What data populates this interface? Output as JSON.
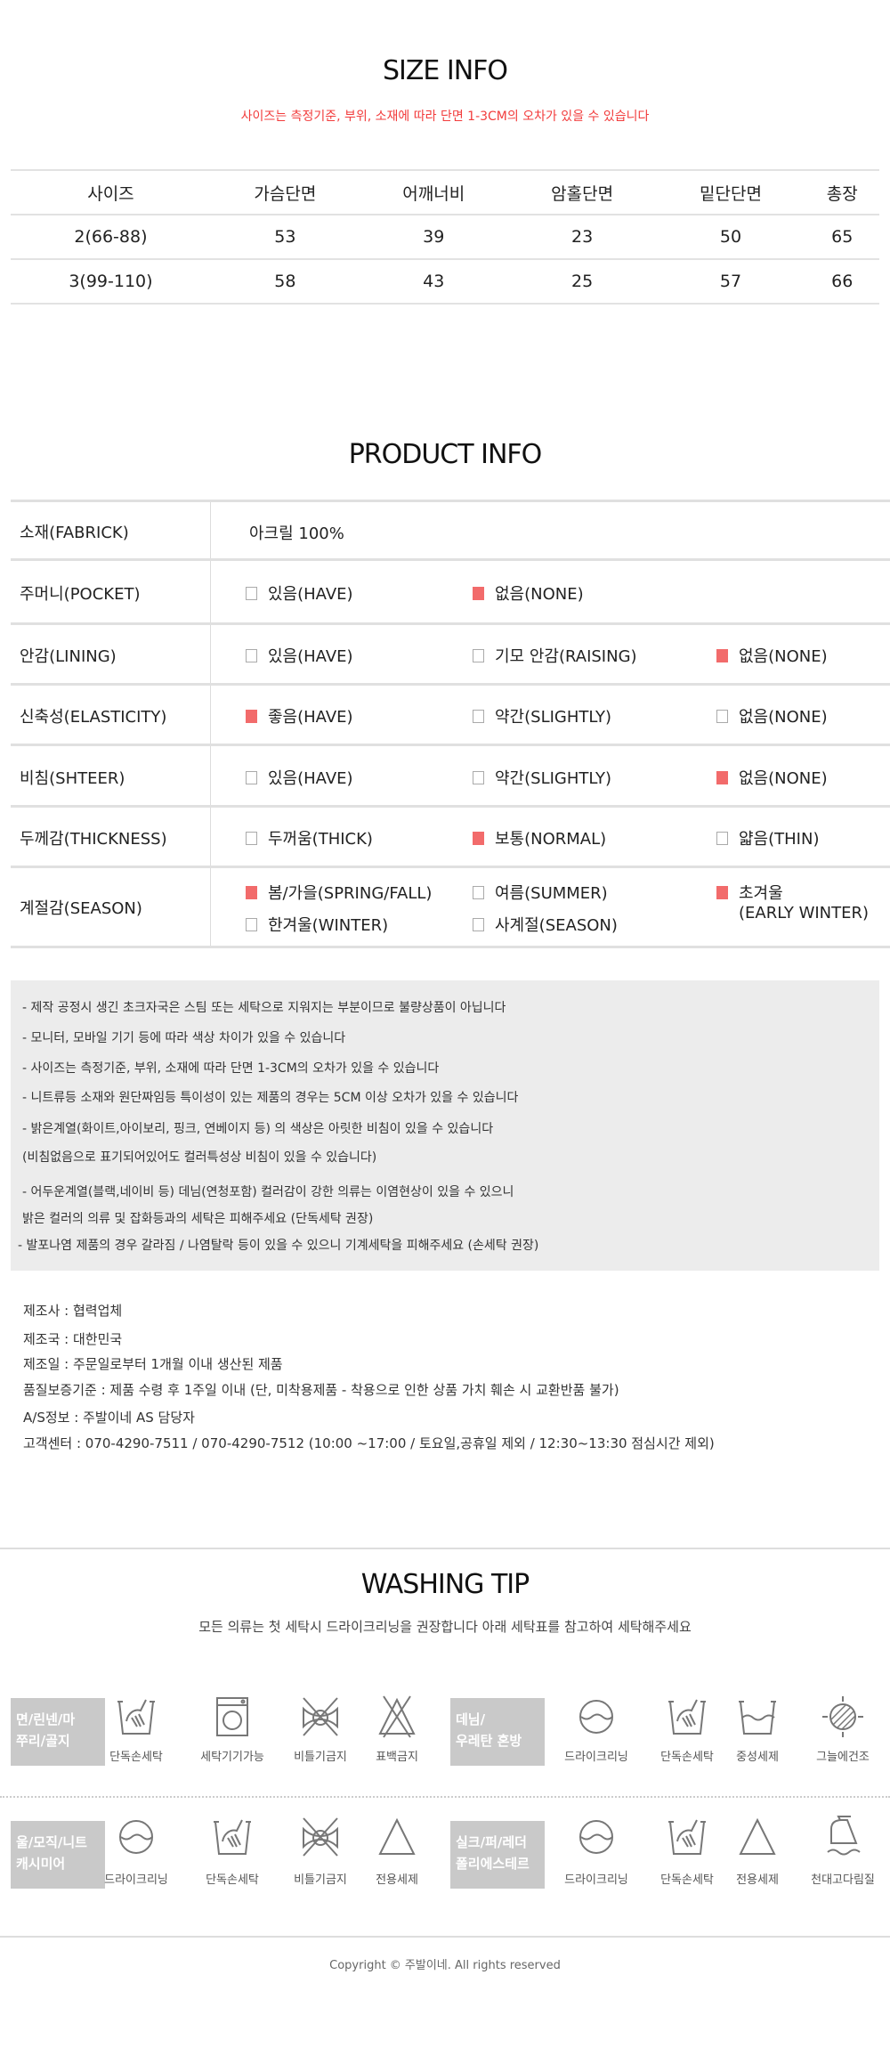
{
  "size_info": {
    "title": "SIZE INFO",
    "subtitle": "사이즈는 측정기준, 부위, 소재에 따라 단면 1-3CM의 오차가 있을 수 있습니다",
    "headers": [
      "사이즈",
      "가슴단면",
      "어깨너비",
      "암홀단면",
      "밑단단면",
      "총장"
    ],
    "rows": [
      [
        "2(66-88)",
        "53",
        "39",
        "23",
        "50",
        "65"
      ],
      [
        "3(99-110)",
        "58",
        "43",
        "25",
        "57",
        "66"
      ]
    ]
  },
  "product_info": {
    "title": "PRODUCT INFO",
    "fabric_label": "소재(FABRICK)",
    "fabric_value": "아크릴 100%",
    "rows": [
      {
        "label": "주머니(POCKET)",
        "options": [
          {
            "text": "있음(HAVE)",
            "checked": false
          },
          {
            "text": "없음(NONE)",
            "checked": true
          }
        ]
      },
      {
        "label": "안감(LINING)",
        "options": [
          {
            "text": "있음(HAVE)",
            "checked": false
          },
          {
            "text": "기모 안감(RAISING)",
            "checked": false
          },
          {
            "text": "없음(NONE)",
            "checked": true
          }
        ]
      },
      {
        "label": "신축성(ELASTICITY)",
        "options": [
          {
            "text": "좋음(HAVE)",
            "checked": true
          },
          {
            "text": "약간(SLIGHTLY)",
            "checked": false
          },
          {
            "text": "없음(NONE)",
            "checked": false
          }
        ]
      },
      {
        "label": "비침(SHTEER)",
        "options": [
          {
            "text": "있음(HAVE)",
            "checked": false
          },
          {
            "text": "약간(SLIGHTLY)",
            "checked": false
          },
          {
            "text": "없음(NONE)",
            "checked": true
          }
        ]
      },
      {
        "label": "두께감(THICKNESS)",
        "options": [
          {
            "text": "두꺼움(THICK)",
            "checked": false
          },
          {
            "text": "보통(NORMAL)",
            "checked": true
          },
          {
            "text": "얇음(THIN)",
            "checked": false
          }
        ]
      }
    ],
    "season": {
      "label": "계절감(SEASON)",
      "options": [
        {
          "text": "봄/가을(SPRING/FALL)",
          "checked": true
        },
        {
          "text": "여름(SUMMER)",
          "checked": false
        },
        {
          "text": "초겨울",
          "text2": "(EARLY WINTER)",
          "checked": true
        },
        {
          "text": "한겨울(WINTER)",
          "checked": false
        },
        {
          "text": "사계절(SEASON)",
          "checked": false
        }
      ]
    },
    "check_color": "#f26b6b"
  },
  "notices": [
    "- 제작 공정시 생긴 초크자국은 스팀 또는 세탁으로 지워지는 부분이므로 불량상품이 아닙니다",
    "- 모니터, 모바일 기기 등에 따라 색상 차이가 있을 수 있습니다",
    "- 사이즈는 측정기준, 부위, 소재에 따라 단면 1-3CM의 오차가 있을 수 있습니다",
    "- 니트류등 소재와 원단짜임등 특이성이 있는 제품의 경우는 5CM 이상 오차가 있을 수 있습니다",
    "- 밝은계열(화이트,아이보리, 핑크, 연베이지 등) 의 색상은 아릿한 비침이 있을 수 있습니다",
    "(비침없음으로 표기되어있어도 컬러특성상 비침이 있을 수 있습니다)",
    "- 어두운계열(블랙,네이비 등) 데님(연청포함) 컬러감이 강한 의류는 이염현상이 있을 수 있으니",
    "  밝은 컬러의 의류 및 잡화등과의 세탁은 피해주세요 (단독세탁 권장)",
    "- 발포나염 제품의 경우 갈라짐 / 나염탈락 등이 있을 수 있으니 기계세탁을 피해주세요 (손세탁 권장)"
  ],
  "maker_info": [
    "제조사 : 협력업체",
    "제조국 : 대한민국",
    "제조일 :  주문일로부터 1개월 이내 생산된 제품",
    "품질보증기준 : 제품 수령 후 1주일 이내 (단, 미착용제품 - 착용으로 인한 상품 가치 훼손 시 교환반품 불가)",
    "A/S정보 : 주발이네 AS 담당자"
  ],
  "customer_center": "고객센터 : 070-4290-7511 / 070-4290-7512 (10:00 ~17:00 / 토요일,공휴일 제외 / 12:30~13:30 점심시간 제외)",
  "washing": {
    "title": "WASHING TIP",
    "subtitle": "모든 의류는 첫 세탁시 드라이크리닝을 권장합니다 아래 세탁표를 참고하여 세탁해주세요",
    "groups": [
      {
        "label": [
          "면/린넨/마",
          "쭈리/골지"
        ],
        "items": [
          {
            "icon": "hand-wash",
            "text": "단독손세탁"
          },
          {
            "icon": "washing-machine",
            "text": "세탁기기가능"
          },
          {
            "icon": "no-wring",
            "text": "비틀기금지"
          },
          {
            "icon": "no-bleach",
            "text": "표백금지"
          }
        ]
      },
      {
        "label": [
          "데님/",
          "우레탄 혼방"
        ],
        "items": [
          {
            "icon": "dry-clean",
            "text": "드라이크리닝"
          },
          {
            "icon": "hand-wash",
            "text": "단독손세탁"
          },
          {
            "icon": "neutral-detergent",
            "text": "중성세제"
          },
          {
            "icon": "shade-dry",
            "text": "그늘에건조"
          }
        ]
      },
      {
        "label": [
          "울/모직/니트",
          "캐시미어"
        ],
        "items": [
          {
            "icon": "dry-clean",
            "text": "드라이크리닝"
          },
          {
            "icon": "hand-wash",
            "text": "단독손세탁"
          },
          {
            "icon": "no-wring",
            "text": "비틀기금지"
          },
          {
            "icon": "special-detergent",
            "text": "전용세제"
          }
        ]
      },
      {
        "label": [
          "실크/퍼/레더",
          "폴리에스테르"
        ],
        "items": [
          {
            "icon": "dry-clean",
            "text": "드라이크리닝"
          },
          {
            "icon": "hand-wash",
            "text": "단독손세탁"
          },
          {
            "icon": "special-detergent",
            "text": "전용세제"
          },
          {
            "icon": "iron-with-cloth",
            "text": "천대고다림질"
          }
        ]
      }
    ]
  },
  "copyright": "Copyright © 주발이네. All rights reserved"
}
